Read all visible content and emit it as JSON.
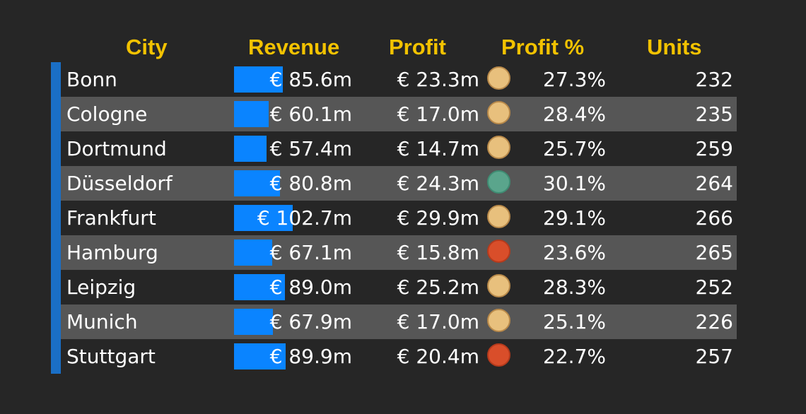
{
  "chart_data": {
    "type": "table",
    "columns": [
      "City",
      "Revenue",
      "Profit",
      "Profit %",
      "Units"
    ],
    "revenue_max": 102.7,
    "colors": {
      "header": "#f2c200",
      "bar": "#0a84ff",
      "accent": "#1a6fc6",
      "status_neutral": "#e8c07d",
      "status_good": "#5aa58c",
      "status_bad": "#d94e2a"
    },
    "rows": [
      {
        "city": "Bonn",
        "revenue": 85.6,
        "revenue_label": "€ 85.6m",
        "profit_label": "€ 23.3m",
        "status": "neutral",
        "profit_pct_label": "27.3%",
        "units": "232"
      },
      {
        "city": "Cologne",
        "revenue": 60.1,
        "revenue_label": "€ 60.1m",
        "profit_label": "€ 17.0m",
        "status": "neutral",
        "profit_pct_label": "28.4%",
        "units": "235"
      },
      {
        "city": "Dortmund",
        "revenue": 57.4,
        "revenue_label": "€ 57.4m",
        "profit_label": "€ 14.7m",
        "status": "neutral",
        "profit_pct_label": "25.7%",
        "units": "259"
      },
      {
        "city": "Düsseldorf",
        "revenue": 80.8,
        "revenue_label": "€ 80.8m",
        "profit_label": "€ 24.3m",
        "status": "good",
        "profit_pct_label": "30.1%",
        "units": "264"
      },
      {
        "city": "Frankfurt",
        "revenue": 102.7,
        "revenue_label": "€ 102.7m",
        "profit_label": "€ 29.9m",
        "status": "neutral",
        "profit_pct_label": "29.1%",
        "units": "266"
      },
      {
        "city": "Hamburg",
        "revenue": 67.1,
        "revenue_label": "€ 67.1m",
        "profit_label": "€ 15.8m",
        "status": "bad",
        "profit_pct_label": "23.6%",
        "units": "265"
      },
      {
        "city": "Leipzig",
        "revenue": 89.0,
        "revenue_label": "€ 89.0m",
        "profit_label": "€ 25.2m",
        "status": "neutral",
        "profit_pct_label": "28.3%",
        "units": "252"
      },
      {
        "city": "Munich",
        "revenue": 67.9,
        "revenue_label": "€ 67.9m",
        "profit_label": "€ 17.0m",
        "status": "neutral",
        "profit_pct_label": "25.1%",
        "units": "226"
      },
      {
        "city": "Stuttgart",
        "revenue": 89.9,
        "revenue_label": "€ 89.9m",
        "profit_label": "€ 20.4m",
        "status": "bad",
        "profit_pct_label": "22.7%",
        "units": "257"
      }
    ]
  }
}
